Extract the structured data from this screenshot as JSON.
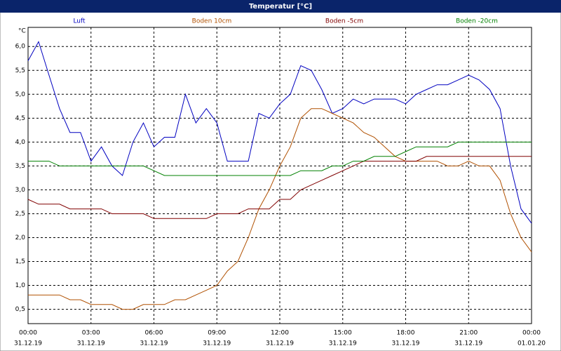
{
  "chart_data": {
    "type": "line",
    "title": "Temperatur [°C]",
    "unit": "°C",
    "x": [
      0,
      0.5,
      1,
      1.5,
      2,
      2.5,
      3,
      3.5,
      4,
      4.5,
      5,
      5.5,
      6,
      6.5,
      7,
      7.5,
      8,
      8.5,
      9,
      9.5,
      10,
      10.5,
      11,
      11.5,
      12,
      12.5,
      13,
      13.5,
      14,
      14.5,
      15,
      15.5,
      16,
      16.5,
      17,
      17.5,
      18,
      18.5,
      19,
      19.5,
      20,
      20.5,
      21,
      21.5,
      22,
      22.5,
      23,
      23.5,
      24
    ],
    "series": [
      {
        "name": "Luft",
        "color": "#0000c0",
        "values": [
          5.7,
          6.1,
          5.4,
          4.7,
          4.2,
          4.2,
          3.6,
          3.9,
          3.5,
          3.3,
          4.0,
          4.4,
          3.9,
          4.1,
          4.1,
          5.0,
          4.4,
          4.7,
          4.4,
          3.6,
          3.6,
          3.6,
          4.6,
          4.5,
          4.8,
          5.0,
          5.6,
          5.5,
          5.1,
          4.6,
          4.7,
          4.9,
          4.8,
          4.9,
          4.9,
          4.9,
          4.8,
          5.0,
          5.1,
          5.2,
          5.2,
          5.3,
          5.4,
          5.3,
          5.1,
          4.7,
          3.5,
          2.6,
          2.3
        ]
      },
      {
        "name": "Boden 10cm",
        "color": "#b05000",
        "values": [
          0.8,
          0.8,
          0.8,
          0.8,
          0.7,
          0.7,
          0.6,
          0.6,
          0.6,
          0.5,
          0.5,
          0.6,
          0.6,
          0.6,
          0.7,
          0.7,
          0.8,
          0.9,
          1.0,
          1.3,
          1.5,
          2.0,
          2.6,
          3.0,
          3.5,
          3.9,
          4.5,
          4.7,
          4.7,
          4.6,
          4.5,
          4.4,
          4.2,
          4.1,
          3.9,
          3.7,
          3.6,
          3.6,
          3.6,
          3.6,
          3.5,
          3.5,
          3.6,
          3.5,
          3.5,
          3.2,
          2.5,
          2.0,
          1.7
        ]
      },
      {
        "name": "Boden -5cm",
        "color": "#800000",
        "values": [
          2.8,
          2.7,
          2.7,
          2.7,
          2.6,
          2.6,
          2.6,
          2.6,
          2.5,
          2.5,
          2.5,
          2.5,
          2.4,
          2.4,
          2.4,
          2.4,
          2.4,
          2.4,
          2.5,
          2.5,
          2.5,
          2.6,
          2.6,
          2.6,
          2.8,
          2.8,
          3.0,
          3.1,
          3.2,
          3.3,
          3.4,
          3.5,
          3.6,
          3.6,
          3.6,
          3.6,
          3.6,
          3.6,
          3.7,
          3.7,
          3.7,
          3.7,
          3.7,
          3.7,
          3.7,
          3.7,
          3.7,
          3.7,
          3.7
        ]
      },
      {
        "name": "Boden -20cm",
        "color": "#008000",
        "values": [
          3.6,
          3.6,
          3.6,
          3.5,
          3.5,
          3.5,
          3.5,
          3.5,
          3.5,
          3.5,
          3.5,
          3.5,
          3.4,
          3.3,
          3.3,
          3.3,
          3.3,
          3.3,
          3.3,
          3.3,
          3.3,
          3.3,
          3.3,
          3.3,
          3.3,
          3.3,
          3.4,
          3.4,
          3.4,
          3.5,
          3.5,
          3.6,
          3.6,
          3.7,
          3.7,
          3.7,
          3.8,
          3.9,
          3.9,
          3.9,
          3.9,
          4.0,
          4.0,
          4.0,
          4.0,
          4.0,
          4.0,
          4.0,
          4.0
        ]
      }
    ],
    "xlim": [
      0,
      24
    ],
    "xticks": [
      {
        "value": 0,
        "label": "00:00",
        "date": "31.12.19"
      },
      {
        "value": 3,
        "label": "03:00",
        "date": "31.12.19"
      },
      {
        "value": 6,
        "label": "06:00",
        "date": "31.12.19"
      },
      {
        "value": 9,
        "label": "09:00",
        "date": "31.12.19"
      },
      {
        "value": 12,
        "label": "12:00",
        "date": "31.12.19"
      },
      {
        "value": 15,
        "label": "15:00",
        "date": "31.12.19"
      },
      {
        "value": 18,
        "label": "18:00",
        "date": "31.12.19"
      },
      {
        "value": 21,
        "label": "21:00",
        "date": "31.12.19"
      },
      {
        "value": 24,
        "label": "00:00",
        "date": "01.01.20"
      }
    ],
    "ylim": [
      0.2,
      6.4
    ],
    "yticks": [
      {
        "value": 0.5,
        "label": "0,5"
      },
      {
        "value": 1,
        "label": "1,0"
      },
      {
        "value": 1.5,
        "label": "1,5"
      },
      {
        "value": 2,
        "label": "2,0"
      },
      {
        "value": 2.5,
        "label": "2,5"
      },
      {
        "value": 3,
        "label": "3,0"
      },
      {
        "value": 3.5,
        "label": "3,5"
      },
      {
        "value": 4,
        "label": "4,0"
      },
      {
        "value": 4.5,
        "label": "4,5"
      },
      {
        "value": 5,
        "label": "5,0"
      },
      {
        "value": 5.5,
        "label": "5,5"
      },
      {
        "value": 6,
        "label": "6,0"
      }
    ],
    "grid": true
  }
}
